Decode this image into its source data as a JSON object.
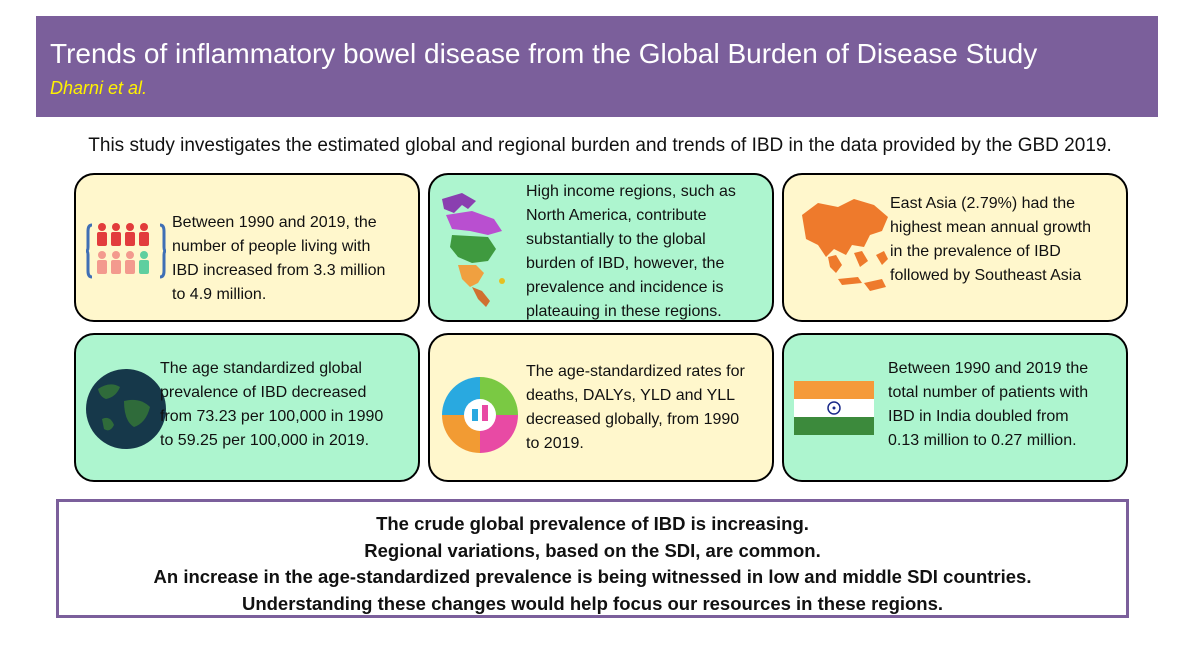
{
  "header": {
    "title": "Trends of inflammatory bowel disease from the Global Burden of Disease Study",
    "author": "Dharni et al.",
    "bg_color": "#7b5f9b",
    "author_color": "#fff200"
  },
  "intro": "This study investigates the estimated global and regional burden and trends of IBD in the data provided by the GBD 2019.",
  "cards": [
    {
      "icon": "people-icon",
      "color": "#fff7cc",
      "lines": [
        "Between 1990 and 2019, the",
        "number of people living with",
        "IBD increased from 3.3 million",
        "to 4.9 million."
      ]
    },
    {
      "icon": "north-america-map-icon",
      "color": "#adf5cf",
      "lines": [
        "High income regions, such as",
        "North America, contribute",
        "substantially to the global",
        "burden of IBD, however, the",
        "prevalence and incidence is",
        "plateauing in these regions."
      ]
    },
    {
      "icon": "asia-map-icon",
      "color": "#fff7cc",
      "lines": [
        "East Asia (2.79%) had the",
        "highest mean annual growth",
        "in the prevalence of IBD",
        "followed by Southeast Asia"
      ]
    },
    {
      "icon": "globe-icon",
      "color": "#adf5cf",
      "lines": [
        "The age standardized global",
        "prevalence of IBD decreased",
        "from 73.23 per 100,000 in 1990",
        "to 59.25 per 100,000 in 2019."
      ]
    },
    {
      "icon": "health-metrics-icon",
      "color": "#fff7cc",
      "lines": [
        "The age-standardized rates for",
        "deaths, DALYs, YLD and YLL",
        "decreased globally, from 1990",
        "to 2019."
      ]
    },
    {
      "icon": "india-flag-icon",
      "color": "#adf5cf",
      "lines": [
        "Between 1990 and 2019 the",
        "total number of patients with",
        "IBD in India doubled from",
        "0.13 million to 0.27 million."
      ]
    }
  ],
  "summary": [
    "The crude global prevalence of IBD is increasing.",
    "Regional variations, based on the SDI, are common.",
    "An increase in the age-standardized prevalence is being witnessed in low and middle SDI countries.",
    "Understanding these changes would help focus our resources in these regions."
  ]
}
